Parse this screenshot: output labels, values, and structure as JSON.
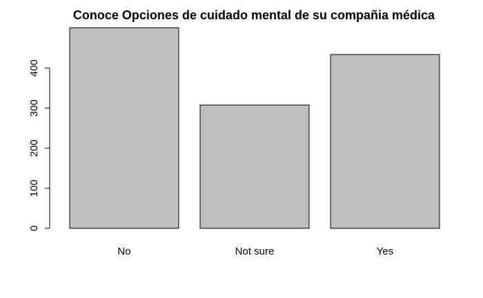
{
  "chart_data": {
    "type": "bar",
    "title": "Conoce Opciones de cuidado mental de su compañia médica",
    "categories": [
      "No",
      "Not sure",
      "Yes"
    ],
    "values": [
      501,
      308,
      434
    ],
    "xlabel": "",
    "ylabel": "",
    "ylim": [
      0,
      501
    ],
    "yticks": [
      0,
      100,
      200,
      300,
      400
    ],
    "grid": false,
    "bar_color": "#bebebe"
  }
}
